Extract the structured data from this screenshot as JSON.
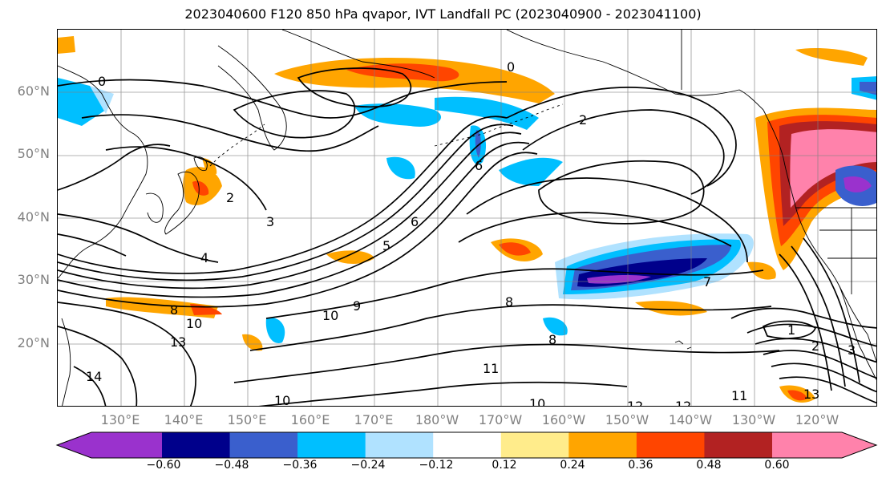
{
  "title": "2023040600 F120 850 hPa qvapor, IVT Landfall PC (2023040900 - 2023041100)",
  "lat_labels": [
    "60°N",
    "50°N",
    "40°N",
    "30°N",
    "20°N"
  ],
  "lon_labels": [
    "130°E",
    "140°E",
    "150°E",
    "160°E",
    "170°E",
    "180°W",
    "170°W",
    "160°W",
    "150°W",
    "140°W",
    "130°W",
    "120°W"
  ],
  "colorbar": {
    "ticks": [
      "−0.60",
      "−0.48",
      "−0.36",
      "−0.24",
      "−0.12",
      "0.12",
      "0.24",
      "0.36",
      "0.48",
      "0.60"
    ],
    "colors": [
      "#9a32cd",
      "#00008b",
      "#3a5fcd",
      "#00bfff",
      "#b0e2ff",
      "#ffffff",
      "#ffec8b",
      "#ffa500",
      "#ff4500",
      "#b22222",
      "#ff82ab"
    ]
  },
  "contour_labels": [
    "0",
    "0",
    "2",
    "2",
    "3",
    "4",
    "5",
    "6",
    "6",
    "7",
    "8",
    "8",
    "8",
    "9",
    "10",
    "10",
    "10",
    "10",
    "11",
    "11",
    "12",
    "12",
    "13",
    "13",
    "14",
    "1",
    "2",
    "3"
  ],
  "colors": {
    "coast": "#000000",
    "grid": "#808080",
    "contour": "#000000"
  }
}
